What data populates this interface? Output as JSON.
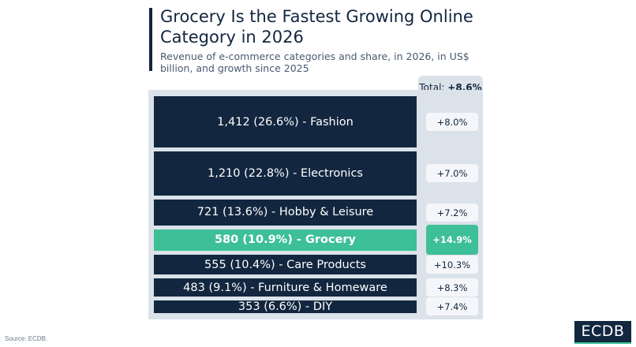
{
  "header": {
    "title": "Grocery Is the Fastest Growing Online Category in 2026",
    "subtitle": "Revenue of e-commerce categories and share, in 2026, in US$ billion, and growth since 2025"
  },
  "total": {
    "label": "Total:",
    "value": "+8.6%"
  },
  "chart_data": {
    "type": "bar",
    "title": "Grocery Is the Fastest Growing Online Category in 2026",
    "subtitle": "Revenue of e-commerce categories and share, in 2026, in US$ billion, and growth since 2025",
    "unit": "US$ billion",
    "total_growth": "+8.6%",
    "highlight": "Grocery",
    "categories": [
      "Fashion",
      "Electronics",
      "Hobby & Leisure",
      "Grocery",
      "Care Products",
      "Furniture & Homeware",
      "DIY"
    ],
    "series": [
      {
        "name": "Revenue 2026 (US$ billion)",
        "values": [
          1412,
          1210,
          721,
          580,
          555,
          483,
          353
        ]
      },
      {
        "name": "Share (%)",
        "values": [
          26.6,
          22.8,
          13.6,
          10.9,
          10.4,
          9.1,
          6.6
        ]
      },
      {
        "name": "Growth since 2025 (%)",
        "values": [
          8.0,
          7.0,
          7.2,
          14.9,
          10.3,
          8.3,
          7.4
        ]
      }
    ],
    "labels": [
      "1,412 (26.6%) - Fashion",
      "1,210 (22.8%) - Electronics",
      "721 (13.6%) - Hobby & Leisure",
      "580 (10.9%) - Grocery",
      "555 (10.4%) - Care Products",
      "483 (9.1%) - Furniture & Homeware",
      "353 (6.6%) - DIY"
    ],
    "growth_labels": [
      "+8.0%",
      "+7.0%",
      "+7.2%",
      "+14.9%",
      "+10.3%",
      "+8.3%",
      "+7.4%"
    ]
  },
  "colors": {
    "primary": "#12263f",
    "accent": "#3dbf98",
    "panel": "#dbe2ea"
  },
  "footer": {
    "source": "Source: ECDB.",
    "logo": "ECDB"
  }
}
